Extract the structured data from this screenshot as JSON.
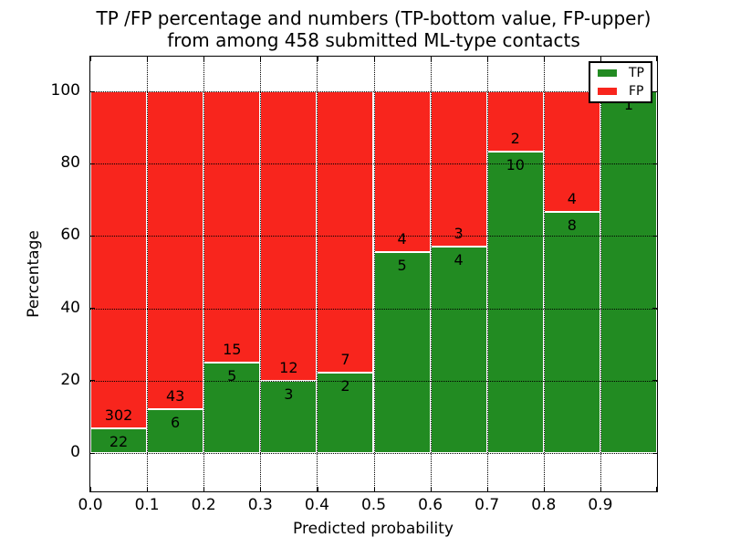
{
  "title": {
    "line1": "TP /FP percentage and numbers (TP-bottom value, FP-upper)",
    "line2": "from among 458 submitted ML-type contacts"
  },
  "axes": {
    "ylabel": "Percentage",
    "xlabel": "Predicted probability",
    "ytick_labels": [
      "0",
      "20",
      "40",
      "60",
      "80",
      "100"
    ],
    "ytick_values": [
      0,
      20,
      40,
      60,
      80,
      100
    ],
    "xtick_labels": [
      "0.0",
      "0.1",
      "0.2",
      "0.3",
      "0.4",
      "0.5",
      "0.6",
      "0.7",
      "0.8",
      "0.9"
    ],
    "xtick_values": [
      0.0,
      0.1,
      0.2,
      0.3,
      0.4,
      0.5,
      0.6,
      0.7,
      0.8,
      0.9
    ]
  },
  "legend": {
    "position": "upper right",
    "items": [
      {
        "label": "TP",
        "color": "#228b22"
      },
      {
        "label": "FP",
        "color": "#f8251d"
      }
    ]
  },
  "colors": {
    "tp": "#228b22",
    "fp": "#f8251d",
    "grid": "#000000",
    "background": "#ffffff"
  },
  "chart_data": {
    "type": "bar",
    "stacked": true,
    "orientation": "vertical",
    "title": "TP /FP percentage and numbers (TP-bottom value, FP-upper) from among 458 submitted ML-type contacts",
    "xlabel": "Predicted probability",
    "ylabel": "Percentage",
    "total_contacts": 458,
    "bins": [
      "0.0-0.1",
      "0.1-0.2",
      "0.2-0.3",
      "0.3-0.4",
      "0.4-0.5",
      "0.5-0.6",
      "0.6-0.7",
      "0.7-0.8",
      "0.8-0.9",
      "0.9-1.0"
    ],
    "bin_width": 0.1,
    "series": [
      {
        "name": "TP",
        "color": "#228b22",
        "counts": [
          22,
          6,
          5,
          3,
          2,
          5,
          4,
          10,
          8,
          1
        ],
        "percentages": [
          6.79,
          12.24,
          25.0,
          20.0,
          22.22,
          55.56,
          57.14,
          83.33,
          66.67,
          100.0
        ]
      },
      {
        "name": "FP",
        "color": "#f8251d",
        "counts": [
          302,
          43,
          15,
          12,
          7,
          4,
          3,
          2,
          4,
          0
        ],
        "percentages": [
          93.21,
          87.76,
          75.0,
          80.0,
          77.78,
          44.44,
          42.86,
          16.67,
          33.33,
          0.0
        ]
      }
    ],
    "value_label_rule": "TP count printed just below segment boundary, FP count just above",
    "xlim": [
      0.0,
      1.0
    ],
    "ylim": [
      -10.6,
      109.6
    ],
    "grid": true,
    "grid_style": "dotted",
    "legend_position": "upper right"
  }
}
